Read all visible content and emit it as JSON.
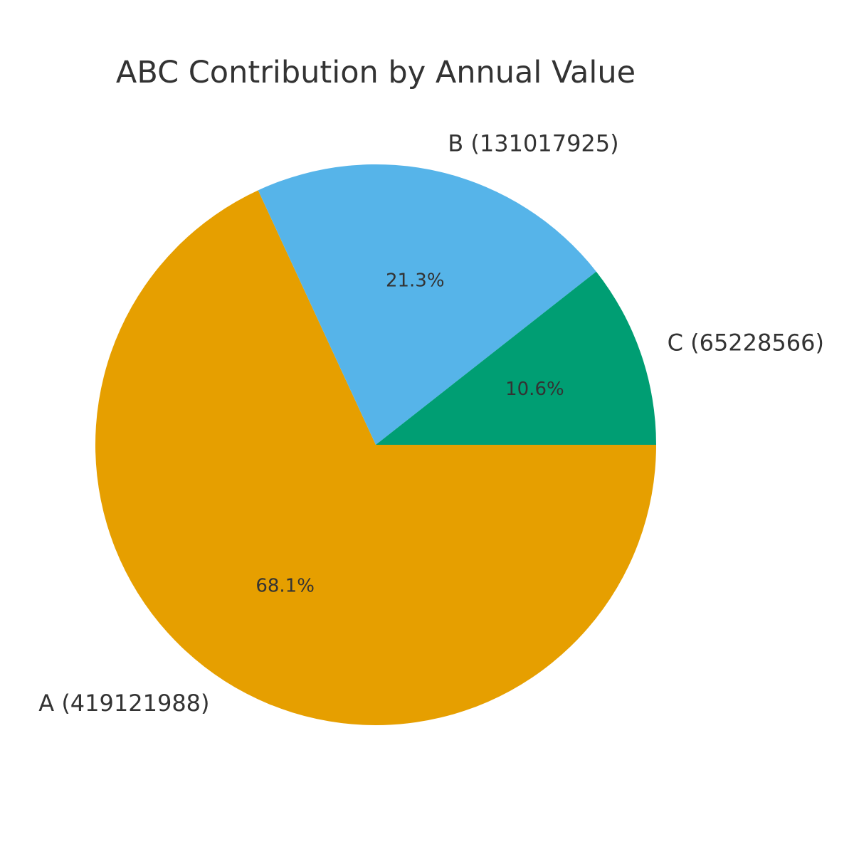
{
  "chart_data": {
    "type": "pie",
    "title": "ABC Contribution by Annual Value",
    "categories": [
      "A",
      "B",
      "C"
    ],
    "values": [
      419121988,
      131017925,
      65228566
    ],
    "labels": [
      "A (419121988)",
      "B (131017925)",
      "C (65228566)"
    ],
    "percent_labels": [
      "68.1%",
      "21.3%",
      "10.6%"
    ],
    "colors": [
      "#E69F00",
      "#56B4E9",
      "#009E73"
    ],
    "start_angle": "3 o'clock, clockwise",
    "legend": "none"
  }
}
